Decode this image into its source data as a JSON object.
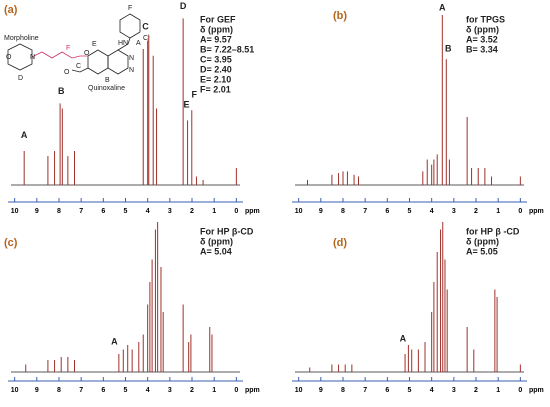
{
  "chart_data": [
    {
      "type": "spectrum",
      "panel": "(a)",
      "title": "For GEF",
      "subtitle": "δ (ppm)",
      "notes": [
        "A= 9.57",
        "B= 7.22–8.51",
        "C= 3.95",
        "D= 2.40",
        "E= 2.10",
        "F= 2.01"
      ],
      "x_label": "ppm",
      "xlim": [
        10.3,
        -0.3
      ],
      "xticks": [
        10,
        9,
        8,
        7,
        6,
        5,
        4,
        3,
        2,
        1,
        0
      ],
      "ylim": [
        0,
        100
      ],
      "color": "#a0302a",
      "x": [
        9.57,
        8.5,
        8.2,
        7.95,
        7.85,
        7.6,
        7.3,
        4.2,
        4.0,
        3.95,
        3.75,
        3.6,
        2.4,
        2.2,
        2.01,
        1.8,
        1.5,
        0
      ],
      "values": [
        20,
        17,
        20,
        48,
        45,
        17,
        20,
        80,
        85,
        88,
        76,
        45,
        98,
        38,
        44,
        5,
        3,
        10
      ],
      "peak_labels": [
        {
          "text": "A",
          "x": 9.57,
          "y": 29
        },
        {
          "text": "B",
          "x": 7.9,
          "y": 55
        },
        {
          "text": "C",
          "x": 4.1,
          "y": 93
        },
        {
          "text": "D",
          "x": 2.4,
          "y": 105
        },
        {
          "text": "E",
          "x": 2.25,
          "y": 47
        },
        {
          "text": "F",
          "x": 1.9,
          "y": 53
        }
      ],
      "structure": [
        "F",
        "Cl",
        "HN",
        "E",
        "A",
        "Morpholine",
        "D",
        "O",
        "N",
        "B",
        "C",
        "Quinoxaline",
        "F",
        "O",
        "O",
        "N",
        "N"
      ]
    },
    {
      "type": "spectrum",
      "panel": "(b)",
      "title": "for TPGS",
      "subtitle": "δ (ppm)",
      "notes": [
        "A= 3.52",
        "B= 3.34"
      ],
      "x_label": "ppm",
      "xlim": [
        10.3,
        -0.3
      ],
      "xticks": [
        10,
        9,
        8,
        7,
        6,
        5,
        4,
        3,
        2,
        1,
        0
      ],
      "ylim": [
        0,
        100
      ],
      "color": "#a0302a",
      "x": [
        9.6,
        8.5,
        8.2,
        8.0,
        7.8,
        7.5,
        7.3,
        4.4,
        4.2,
        4.0,
        3.9,
        3.75,
        3.52,
        3.34,
        3.2,
        2.4,
        2.2,
        1.9,
        1.6,
        1.3,
        0
      ],
      "values": [
        3,
        6,
        7,
        8,
        8,
        6,
        5,
        8,
        15,
        12,
        15,
        18,
        100,
        74,
        15,
        40,
        10,
        10,
        10,
        5,
        5
      ],
      "peak_labels": [
        {
          "text": "A",
          "x": 3.52,
          "y": 104
        },
        {
          "text": "B",
          "x": 3.25,
          "y": 80
        }
      ]
    },
    {
      "type": "spectrum",
      "panel": "(c)",
      "title": "For HP β-CD",
      "subtitle": "δ (ppm)",
      "notes": [
        "A= 5.04"
      ],
      "x_label": "ppm",
      "xlim": [
        10.3,
        -0.3
      ],
      "xticks": [
        10,
        9,
        8,
        7,
        6,
        5,
        4,
        3,
        2,
        1,
        0
      ],
      "ylim": [
        0,
        100
      ],
      "color": "#a0302a",
      "x": [
        9.5,
        8.5,
        8.2,
        7.9,
        7.6,
        7.3,
        5.3,
        5.1,
        4.9,
        4.7,
        4.4,
        4.2,
        4.0,
        3.9,
        3.8,
        3.65,
        3.55,
        3.4,
        3.3,
        2.4,
        2.15,
        2.05,
        1.2,
        1.1
      ],
      "values": [
        5,
        8,
        8,
        10,
        10,
        8,
        12,
        15,
        18,
        15,
        20,
        25,
        45,
        60,
        75,
        95,
        100,
        70,
        40,
        45,
        20,
        25,
        30,
        25
      ],
      "peak_labels": [
        {
          "text": "A",
          "x": 5.5,
          "y": 20
        }
      ]
    },
    {
      "type": "spectrum",
      "panel": "(d)",
      "title": "for HP β -CD",
      "subtitle": "δ (ppm)",
      "notes": [
        "A= 5.05"
      ],
      "x_label": "ppm",
      "xlim": [
        10.3,
        -0.3
      ],
      "xticks": [
        10,
        9,
        8,
        7,
        6,
        5,
        4,
        3,
        2,
        1,
        0
      ],
      "ylim": [
        0,
        100
      ],
      "color": "#a0302a",
      "x": [
        9.5,
        8.5,
        8.2,
        7.9,
        7.6,
        5.2,
        5.05,
        4.9,
        4.6,
        4.3,
        4.0,
        3.9,
        3.75,
        3.6,
        3.5,
        3.4,
        3.3,
        2.4,
        2.1,
        1.15,
        1.05,
        0
      ],
      "values": [
        3,
        5,
        5,
        5,
        5,
        12,
        18,
        15,
        15,
        20,
        40,
        60,
        80,
        95,
        100,
        75,
        55,
        30,
        15,
        55,
        50,
        5
      ],
      "peak_labels": [
        {
          "text": "A",
          "x": 5.3,
          "y": 22
        }
      ]
    }
  ]
}
